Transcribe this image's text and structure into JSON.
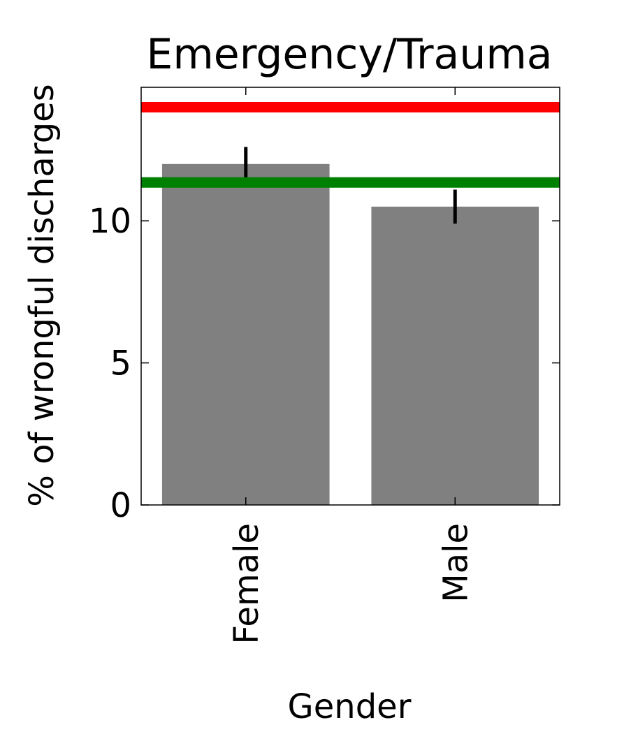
{
  "chart_data": {
    "type": "bar",
    "title": "Emergency/Trauma",
    "xlabel": "Gender",
    "ylabel": "% of wrongful discharges",
    "categories": [
      "Female",
      "Male"
    ],
    "values": [
      12.0,
      10.5
    ],
    "error_bars": [
      {
        "low": 11.5,
        "high": 12.6
      },
      {
        "low": 9.9,
        "high": 11.1
      }
    ],
    "reference_lines": [
      {
        "y": 14.0,
        "color": "#ff0000"
      },
      {
        "y": 11.35,
        "color": "#008000"
      }
    ],
    "ylim": [
      0,
      14.7
    ],
    "yticks": [
      0,
      5,
      10
    ],
    "ytick_labels": [
      "0",
      "5",
      "10"
    ],
    "bar_color": "#808080",
    "grid": false
  }
}
